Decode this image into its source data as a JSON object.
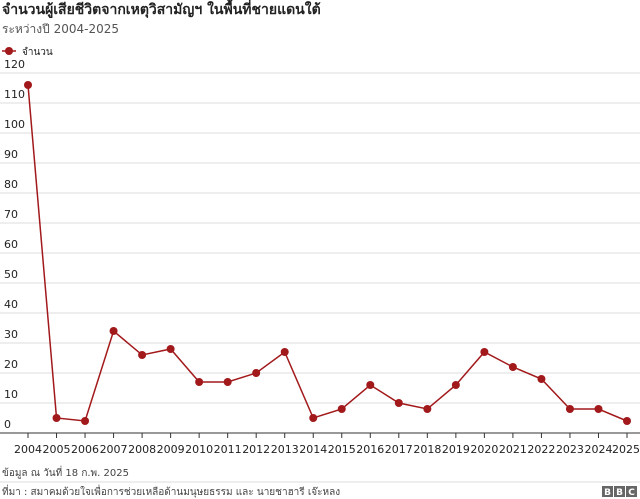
{
  "chart_data": {
    "type": "line",
    "title": "จำนวนผู้เสียชีวิตจากเหตุวิสามัญฯ ในพื้นที่ชายแดนใต้",
    "subtitle": "ระหว่างปี 2004-2025",
    "x": [
      2004,
      2005,
      2006,
      2007,
      2008,
      2009,
      2010,
      2011,
      2012,
      2013,
      2014,
      2015,
      2016,
      2017,
      2018,
      2019,
      2020,
      2021,
      2022,
      2023,
      2024,
      2025
    ],
    "series": [
      {
        "name": "จำนวน",
        "color": "#a2191b",
        "values": [
          116,
          5,
          4,
          34,
          26,
          28,
          17,
          17,
          20,
          27,
          5,
          8,
          16,
          10,
          8,
          16,
          27,
          22,
          18,
          8,
          8,
          4
        ]
      }
    ],
    "xlim": [
      2004,
      2025
    ],
    "xticks": [
      2004,
      2005,
      2006,
      2007,
      2008,
      2009,
      2010,
      2011,
      2012,
      2013,
      2014,
      2015,
      2016,
      2017,
      2018,
      2019,
      2020,
      2021,
      2022,
      2023,
      2024,
      2025
    ],
    "ylim": [
      0,
      120
    ],
    "yticks": [
      0,
      10,
      20,
      30,
      40,
      50,
      60,
      70,
      80,
      90,
      100,
      110,
      120
    ],
    "grid": true,
    "legend": "top-left",
    "note": "ข้อมูล ณ วันที่ 18 ก.พ. 2025",
    "source": "ที่มา : สมาคมด้วยใจเพื่อการช่วยเหลือด้านมนุษยธรรม และ นายชาฮารี เจ๊ะหลง",
    "logo": [
      "B",
      "B",
      "C"
    ]
  }
}
